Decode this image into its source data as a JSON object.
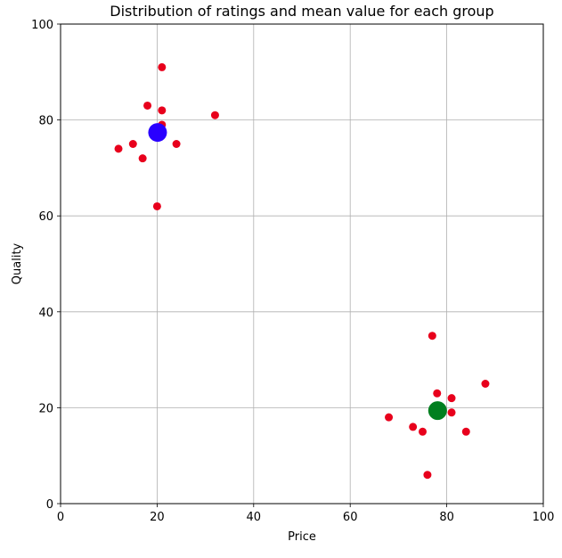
{
  "chart_data": {
    "type": "scatter",
    "title": "Distribution of ratings and mean value for each group",
    "xlabel": "Price",
    "ylabel": "Quality",
    "xlim": [
      0,
      100
    ],
    "ylim": [
      0,
      100
    ],
    "xticks": [
      0,
      20,
      40,
      60,
      80,
      100
    ],
    "yticks": [
      0,
      20,
      40,
      60,
      80,
      100
    ],
    "grid": true,
    "series": [
      {
        "role": "ratings",
        "color": "#e8001c",
        "points": [
          {
            "x": 12,
            "y": 74
          },
          {
            "x": 15,
            "y": 75
          },
          {
            "x": 17,
            "y": 72
          },
          {
            "x": 18,
            "y": 83
          },
          {
            "x": 20,
            "y": 62
          },
          {
            "x": 21,
            "y": 91
          },
          {
            "x": 21,
            "y": 82
          },
          {
            "x": 21,
            "y": 79
          },
          {
            "x": 24,
            "y": 75
          },
          {
            "x": 32,
            "y": 81
          },
          {
            "x": 68,
            "y": 18
          },
          {
            "x": 73,
            "y": 16
          },
          {
            "x": 75,
            "y": 15
          },
          {
            "x": 76,
            "y": 6
          },
          {
            "x": 77,
            "y": 35
          },
          {
            "x": 78,
            "y": 23
          },
          {
            "x": 81,
            "y": 22
          },
          {
            "x": 81,
            "y": 19
          },
          {
            "x": 84,
            "y": 15
          },
          {
            "x": 88,
            "y": 25
          }
        ]
      },
      {
        "role": "group-means",
        "points": [
          {
            "x": 20.1,
            "y": 77.4,
            "color": "#2a00ff"
          },
          {
            "x": 78.1,
            "y": 19.4,
            "color": "#007f1f"
          }
        ]
      }
    ]
  }
}
